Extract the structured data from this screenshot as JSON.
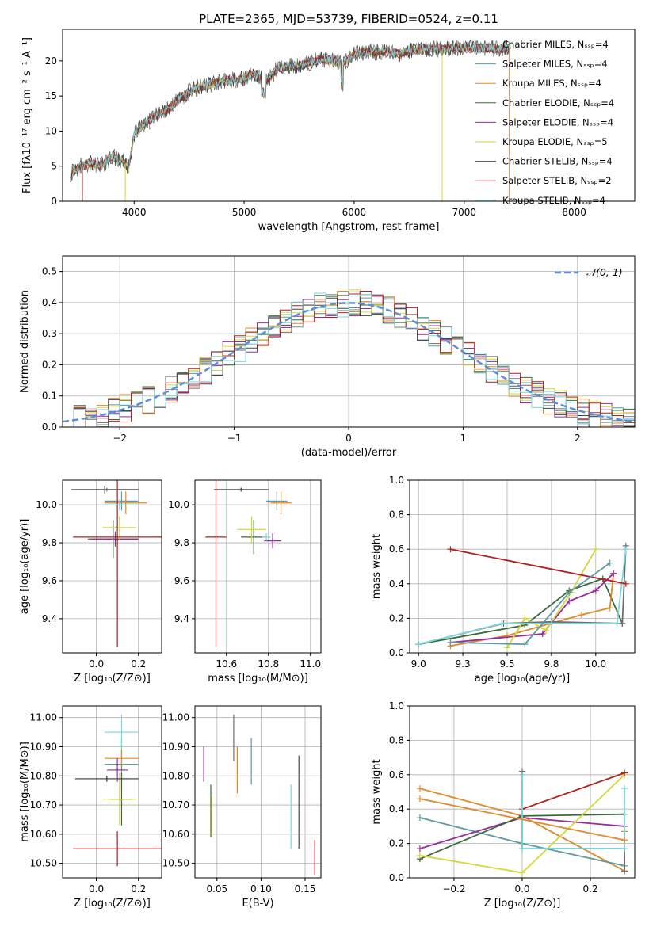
{
  "figure": {
    "title": "PLATE=2365, MJD=53739, FIBERID=0524, z=0.11"
  },
  "colors": {
    "grid": "#b0b0b0",
    "series": [
      "#6e6e6e",
      "#5f9aa0",
      "#e08a2a",
      "#3a6a3a",
      "#9a2a9a",
      "#d6d63a",
      "#444444",
      "#b02020",
      "#7ad8e0"
    ]
  },
  "chart_data": [
    {
      "id": "spectrum",
      "type": "line",
      "xlabel": "wavelength [Angstrom, rest frame]",
      "ylabel": "Flux [fλ10⁻¹⁷ erg cm⁻² s⁻¹ A⁻¹]",
      "xlim": [
        3350,
        8550
      ],
      "ylim": [
        0,
        24.5
      ],
      "xticks": [
        4000,
        5000,
        6000,
        7000,
        8000
      ],
      "yticks": [
        0,
        5,
        10,
        15,
        20
      ],
      "grid": false,
      "legend_position": "top-right",
      "continuum": [
        [
          3420,
          3.9
        ],
        [
          3500,
          4.9
        ],
        [
          3600,
          5.4
        ],
        [
          3700,
          5.1
        ],
        [
          3800,
          6.3
        ],
        [
          3900,
          5.8
        ],
        [
          3950,
          4.6
        ],
        [
          4000,
          9.6
        ],
        [
          4100,
          11.0
        ],
        [
          4200,
          12.2
        ],
        [
          4300,
          13.0
        ],
        [
          4400,
          14.4
        ],
        [
          4500,
          15.6
        ],
        [
          4600,
          16.3
        ],
        [
          4700,
          16.6
        ],
        [
          4800,
          17.1
        ],
        [
          4900,
          17.3
        ],
        [
          5000,
          17.5
        ],
        [
          5100,
          18.2
        ],
        [
          5200,
          17.0
        ],
        [
          5300,
          18.9
        ],
        [
          5400,
          19.2
        ],
        [
          5500,
          19.4
        ],
        [
          5600,
          19.8
        ],
        [
          5700,
          20.2
        ],
        [
          5800,
          20.0
        ],
        [
          5900,
          19.6
        ],
        [
          6000,
          21.0
        ],
        [
          6100,
          21.3
        ],
        [
          6200,
          21.2
        ],
        [
          6300,
          21.4
        ],
        [
          6400,
          21.0
        ],
        [
          6500,
          21.4
        ],
        [
          6600,
          21.7
        ],
        [
          6700,
          21.8
        ],
        [
          6800,
          21.6
        ],
        [
          6900,
          21.9
        ],
        [
          7000,
          21.8
        ],
        [
          7100,
          21.7
        ],
        [
          7200,
          21.8
        ],
        [
          7300,
          21.7
        ],
        [
          7400,
          21.8
        ]
      ],
      "dropouts": [
        [
          3530,
          0
        ],
        [
          3920,
          0
        ],
        [
          6800,
          0
        ],
        [
          7410,
          0
        ]
      ],
      "series": [
        {
          "name": "Chabrier MILES, Nₛₛₚ=4"
        },
        {
          "name": "Salpeter MILES, Nₛₛₚ=4"
        },
        {
          "name": "Kroupa MILES, Nₛₛₚ=4"
        },
        {
          "name": "Chabrier ELODIE, Nₛₛₚ=4"
        },
        {
          "name": "Salpeter ELODIE, Nₛₛₚ=4"
        },
        {
          "name": "Kroupa ELODIE, Nₛₛₚ=5"
        },
        {
          "name": "Chabrier STELIB, Nₛₛₚ=4"
        },
        {
          "name": "Salpeter STELIB, Nₛₛₚ=2"
        },
        {
          "name": "Kroupa STELIB, Nₛₛₚ=4"
        }
      ]
    },
    {
      "id": "residuals",
      "type": "line",
      "xlabel": "(data-model)/error",
      "ylabel": "Normed distribution",
      "xlim": [
        -2.5,
        2.5
      ],
      "ylim": [
        0,
        0.55
      ],
      "xticks": [
        -2,
        -1,
        0,
        1,
        2
      ],
      "yticks": [
        0.0,
        0.1,
        0.2,
        0.3,
        0.4,
        0.5
      ],
      "grid": true,
      "legend_position": "top-right",
      "legend": [
        "𝒩(0, 1)"
      ],
      "gaussian": {
        "mean": 0,
        "sigma": 1
      }
    },
    {
      "id": "z-age",
      "type": "scatter",
      "xlabel": "Z [log₁₀(Z/Z⊙)]",
      "ylabel": "age  [log₁₀(age/yr)]",
      "xlim": [
        -0.16,
        0.31
      ],
      "ylim": [
        9.22,
        10.13
      ],
      "xticks": [
        0.0,
        0.2
      ],
      "yticks": [
        9.4,
        9.6,
        9.8,
        10.0
      ],
      "grid": true,
      "points": [
        {
          "x": 0.05,
          "xerr": 0.15,
          "y": 10.08,
          "yerr": 0.01,
          "c": 0
        },
        {
          "x": 0.12,
          "xerr": 0.08,
          "y": 10.02,
          "yerr": 0.05,
          "c": 1
        },
        {
          "x": 0.14,
          "xerr": 0.1,
          "y": 10.01,
          "yerr": 0.06,
          "c": 2
        },
        {
          "x": 0.08,
          "xerr": 0.12,
          "y": 9.82,
          "yerr": 0.1,
          "c": 3
        },
        {
          "x": 0.09,
          "xerr": 0.11,
          "y": 9.82,
          "yerr": 0.04,
          "c": 4
        },
        {
          "x": 0.11,
          "xerr": 0.08,
          "y": 9.88,
          "yerr": 0.06,
          "c": 5
        },
        {
          "x": 0.04,
          "xerr": 0.16,
          "y": 10.08,
          "yerr": 0.02,
          "c": 6
        },
        {
          "x": 0.1,
          "xerr": 0.21,
          "y": 9.83,
          "yerr": 0.58,
          "c": 7
        },
        {
          "x": 0.11,
          "xerr": 0.08,
          "y": 10.0,
          "yerr": 0.03,
          "c": 8
        }
      ]
    },
    {
      "id": "mass-age",
      "type": "scatter",
      "xlabel": "mass [log₁₀(M/M⊙)]",
      "ylabel": "",
      "xlim": [
        10.45,
        11.05
      ],
      "ylim": [
        9.22,
        10.13
      ],
      "xticks": [
        10.6,
        10.8,
        11.0
      ],
      "yticks": [
        9.4,
        9.6,
        9.8,
        10.0
      ],
      "grid": true,
      "points": [
        {
          "x": 10.67,
          "xerr": 0.12,
          "y": 10.08,
          "yerr": 0.01,
          "c": 0
        },
        {
          "x": 10.84,
          "xerr": 0.05,
          "y": 10.02,
          "yerr": 0.05,
          "c": 1
        },
        {
          "x": 10.86,
          "xerr": 0.05,
          "y": 10.01,
          "yerr": 0.06,
          "c": 2
        },
        {
          "x": 10.73,
          "xerr": 0.06,
          "y": 9.83,
          "yerr": 0.09,
          "c": 3
        },
        {
          "x": 10.82,
          "xerr": 0.04,
          "y": 9.81,
          "yerr": 0.04,
          "c": 4
        },
        {
          "x": 10.72,
          "xerr": 0.07,
          "y": 9.87,
          "yerr": 0.07,
          "c": 5
        },
        {
          "x": 10.67,
          "xerr": 0.13,
          "y": 10.08,
          "yerr": 0.01,
          "c": 6
        },
        {
          "x": 10.55,
          "xerr": 0.05,
          "y": 9.83,
          "yerr": 0.58,
          "c": 7
        },
        {
          "x": 10.79,
          "xerr": 0.02,
          "y": 9.83,
          "yerr": 0.02,
          "c": 8
        }
      ]
    },
    {
      "id": "age-weight",
      "type": "line",
      "xlabel": "age  [log₁₀(age/yr)]",
      "ylabel": "mass weight",
      "xlim": [
        8.95,
        10.22
      ],
      "ylim": [
        0,
        1.0
      ],
      "xticks": [
        9.0,
        9.25,
        9.5,
        9.75,
        10.0
      ],
      "yticks": [
        0.0,
        0.2,
        0.4,
        0.6,
        0.8,
        1.0
      ],
      "grid": true,
      "series": [
        {
          "c": 3,
          "x": [
            9.0,
            9.6,
            9.85,
            10.04,
            10.15
          ],
          "y": [
            0.05,
            0.16,
            0.36,
            0.43,
            0.17
          ]
        },
        {
          "c": 2,
          "x": [
            9.18,
            9.5,
            9.92,
            10.08,
            10.1
          ],
          "y": [
            0.04,
            0.1,
            0.22,
            0.26,
            0.46
          ]
        },
        {
          "c": 4,
          "x": [
            9.18,
            9.7,
            9.85,
            10.0,
            10.1
          ],
          "y": [
            0.06,
            0.11,
            0.3,
            0.36,
            0.46
          ]
        },
        {
          "c": 5,
          "x": [
            9.5,
            9.6,
            9.72,
            9.86,
            10.0
          ],
          "y": [
            0.03,
            0.2,
            0.13,
            0.35,
            0.6
          ]
        },
        {
          "c": 0,
          "x": [
            9.0,
            9.48,
            9.75,
            10.15,
            10.17
          ],
          "y": [
            0.05,
            0.17,
            0.18,
            0.17,
            0.62
          ]
        },
        {
          "c": 8,
          "x": [
            9.0,
            9.47,
            9.75,
            10.12,
            10.17
          ],
          "y": [
            0.05,
            0.17,
            0.17,
            0.17,
            0.6
          ]
        },
        {
          "c": 7,
          "x": [
            9.18,
            10.17
          ],
          "y": [
            0.6,
            0.4
          ]
        },
        {
          "c": 1,
          "x": [
            9.18,
            9.6,
            9.85,
            10.08
          ],
          "y": [
            0.06,
            0.05,
            0.35,
            0.52
          ]
        }
      ]
    },
    {
      "id": "z-mass",
      "type": "scatter",
      "xlabel": "Z [log₁₀(Z/Z⊙)]",
      "ylabel": "mass [log₁₀(M/M⊙)]",
      "xlim": [
        -0.16,
        0.31
      ],
      "ylim": [
        10.45,
        11.04
      ],
      "xticks": [
        0.0,
        0.2
      ],
      "yticks": [
        10.5,
        10.6,
        10.7,
        10.8,
        10.9,
        11.0
      ],
      "grid": true,
      "points": [
        {
          "x": 0.05,
          "xerr": 0.15,
          "y": 10.79,
          "yerr": 0.01,
          "c": 0
        },
        {
          "x": 0.12,
          "xerr": 0.08,
          "y": 10.84,
          "yerr": 0.09,
          "c": 1
        },
        {
          "x": 0.12,
          "xerr": 0.08,
          "y": 10.86,
          "yerr": 0.03,
          "c": 2
        },
        {
          "x": 0.12,
          "xerr": 0.05,
          "y": 10.72,
          "yerr": 0.09,
          "c": 3
        },
        {
          "x": 0.1,
          "xerr": 0.05,
          "y": 10.82,
          "yerr": 0.04,
          "c": 4
        },
        {
          "x": 0.11,
          "xerr": 0.08,
          "y": 10.72,
          "yerr": 0.09,
          "c": 5
        },
        {
          "x": 0.05,
          "xerr": 0.15,
          "y": 10.79,
          "yerr": 0.01,
          "c": 6
        },
        {
          "x": 0.1,
          "xerr": 0.21,
          "y": 10.55,
          "yerr": 0.06,
          "c": 7
        },
        {
          "x": 0.12,
          "xerr": 0.08,
          "y": 10.95,
          "yerr": 0.06,
          "c": 8
        }
      ]
    },
    {
      "id": "ebv-mass",
      "type": "scatter",
      "xlabel": "E(B-V)",
      "ylabel": "",
      "xlim": [
        0.025,
        0.168
      ],
      "ylim": [
        10.45,
        11.04
      ],
      "xticks": [
        0.05,
        0.1,
        0.15
      ],
      "yticks": [
        10.5,
        10.6,
        10.7,
        10.8,
        10.9,
        11.0
      ],
      "grid": true,
      "points": [
        {
          "x": 0.069,
          "y": 10.93,
          "yerr": 0.08,
          "c": 0
        },
        {
          "x": 0.073,
          "y": 10.82,
          "yerr": 0.08,
          "c": 2
        },
        {
          "x": 0.043,
          "y": 10.68,
          "yerr": 0.09,
          "c": 3
        },
        {
          "x": 0.035,
          "y": 10.84,
          "yerr": 0.06,
          "c": 4
        },
        {
          "x": 0.044,
          "y": 10.66,
          "yerr": 0.07,
          "c": 5
        },
        {
          "x": 0.089,
          "y": 10.85,
          "yerr": 0.08,
          "c": 1
        },
        {
          "x": 0.143,
          "y": 10.71,
          "yerr": 0.16,
          "c": 6
        },
        {
          "x": 0.161,
          "y": 10.52,
          "yerr": 0.06,
          "c": 7
        },
        {
          "x": 0.134,
          "y": 10.66,
          "yerr": 0.11,
          "c": 8
        }
      ]
    },
    {
      "id": "z-weight",
      "type": "line",
      "xlabel": "Z [log₁₀(Z/Z⊙)]",
      "ylabel": "mass weight",
      "xlim": [
        -0.33,
        0.33
      ],
      "ylim": [
        0,
        1.0
      ],
      "xticks": [
        -0.2,
        0.0,
        0.2
      ],
      "yticks": [
        0.0,
        0.2,
        0.4,
        0.6,
        0.8,
        1.0
      ],
      "grid": true,
      "series": [
        {
          "c": 2,
          "x": [
            -0.3,
            0.0,
            0.3,
            0.3
          ],
          "y": [
            0.52,
            0.36,
            0.04,
            0.27
          ]
        },
        {
          "c": 1,
          "x": [
            -0.3,
            0.0,
            0.3
          ],
          "y": [
            0.35,
            0.2,
            0.07
          ]
        },
        {
          "c": 4,
          "x": [
            -0.3,
            0.0,
            0.3
          ],
          "y": [
            0.17,
            0.35,
            0.3
          ]
        },
        {
          "c": 3,
          "x": [
            -0.3,
            0.0,
            0.3
          ],
          "y": [
            0.11,
            0.36,
            0.37
          ]
        },
        {
          "c": 5,
          "x": [
            -0.3,
            0.0,
            0.3
          ],
          "y": [
            0.13,
            0.03,
            0.6
          ]
        },
        {
          "c": 7,
          "x": [
            0.0,
            0.3
          ],
          "y": [
            0.4,
            0.61
          ]
        },
        {
          "c": 0,
          "x": [
            0.0,
            0.0,
            0.3,
            0.3
          ],
          "y": [
            0.62,
            0.17,
            0.17,
            0.04
          ]
        },
        {
          "c": 8,
          "x": [
            0.0,
            0.0,
            0.3,
            0.3
          ],
          "y": [
            0.6,
            0.17,
            0.17,
            0.52
          ]
        },
        {
          "c": 2,
          "x": [
            -0.3,
            0.3
          ],
          "y": [
            0.46,
            0.22
          ]
        }
      ]
    }
  ]
}
